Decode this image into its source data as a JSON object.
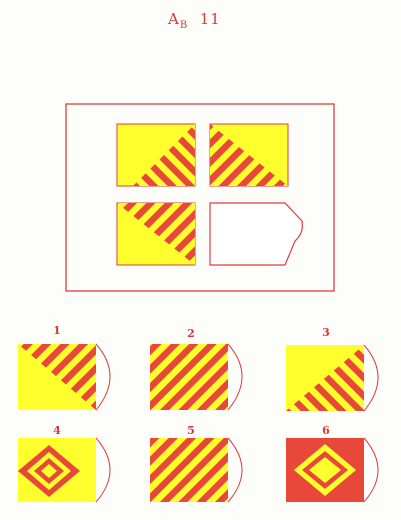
{
  "header": {
    "title_main": "A",
    "title_sub": "B",
    "title_num": "11"
  },
  "options": [
    {
      "label": "1"
    },
    {
      "label": "2"
    },
    {
      "label": "3"
    },
    {
      "label": "4"
    },
    {
      "label": "5"
    },
    {
      "label": "6"
    }
  ],
  "colors": {
    "red": "#e8483a",
    "yellow": "#ffff2e",
    "frame": "#dc3d3d"
  }
}
